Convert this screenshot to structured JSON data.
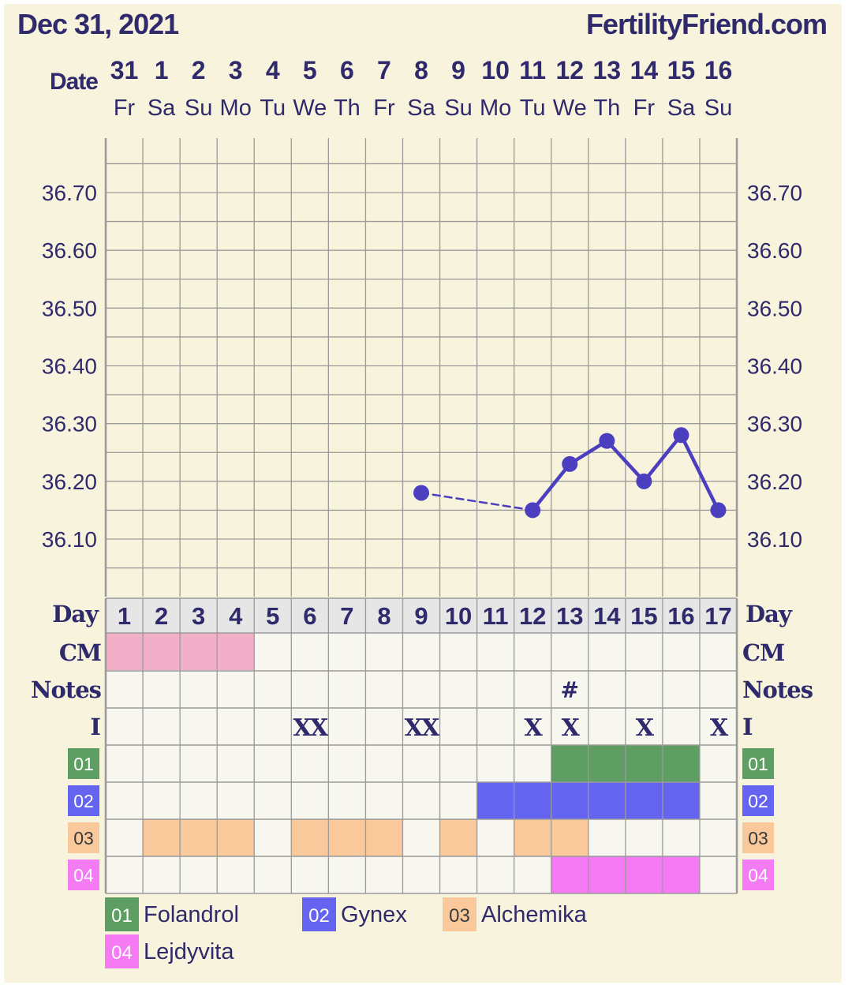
{
  "header": {
    "date": "Dec 31, 2021",
    "site": "FertilityFriend.com"
  },
  "labels": {
    "date": "Date",
    "day": "Day",
    "cm": "CM",
    "notes": "Notes",
    "intercourse": "I"
  },
  "columns": {
    "dates": [
      "31",
      "1",
      "2",
      "3",
      "4",
      "5",
      "6",
      "7",
      "8",
      "9",
      "10",
      "11",
      "12",
      "13",
      "14",
      "15",
      "16"
    ],
    "weekdays": [
      "Fr",
      "Sa",
      "Su",
      "Mo",
      "Tu",
      "We",
      "Th",
      "Fr",
      "Sa",
      "Su",
      "Mo",
      "Tu",
      "We",
      "Th",
      "Fr",
      "Sa",
      "Su"
    ],
    "cycle_days": [
      "1",
      "2",
      "3",
      "4",
      "5",
      "6",
      "7",
      "8",
      "9",
      "10",
      "11",
      "12",
      "13",
      "14",
      "15",
      "16",
      "17"
    ]
  },
  "colors": {
    "background": "#f8f3dc",
    "line": "#4b3fbf",
    "grid": "#9a9a9a",
    "day_row": "#e6e6e6",
    "cm_pink": "#f2b0c8",
    "cell": "#f7f7ef"
  },
  "chart_data": {
    "type": "line",
    "yticks": [
      "36.70",
      "36.60",
      "36.50",
      "36.40",
      "36.30",
      "36.20",
      "36.10"
    ],
    "ylim": [
      36.03,
      36.79
    ],
    "points": [
      {
        "day": 9,
        "temp": 36.18
      },
      {
        "day": 12,
        "temp": 36.15
      },
      {
        "day": 13,
        "temp": 36.23
      },
      {
        "day": 14,
        "temp": 36.27
      },
      {
        "day": 15,
        "temp": 36.2
      },
      {
        "day": 16,
        "temp": 36.28
      },
      {
        "day": 17,
        "temp": 36.15
      }
    ],
    "dashed_segments": [
      [
        9,
        12
      ]
    ]
  },
  "cm": [
    1,
    2,
    3,
    4
  ],
  "notes": [
    {
      "day": 13,
      "text": "#"
    }
  ],
  "intercourse": [
    {
      "day": 6,
      "text": "XX"
    },
    {
      "day": 9,
      "text": "XX"
    },
    {
      "day": 12,
      "text": "X"
    },
    {
      "day": 13,
      "text": "X"
    },
    {
      "day": 15,
      "text": "X"
    },
    {
      "day": 17,
      "text": "X"
    }
  ],
  "meds": [
    {
      "code": "01",
      "name": "Folandrol",
      "color": "#5f9e63",
      "days": [
        13,
        14,
        15,
        16
      ]
    },
    {
      "code": "02",
      "name": "Gynex",
      "color": "#6464f0",
      "days": [
        11,
        12,
        13,
        14,
        15,
        16
      ]
    },
    {
      "code": "03",
      "name": "Alchemika",
      "color": "#f9c99b",
      "days": [
        2,
        3,
        4,
        6,
        7,
        8,
        10,
        12,
        13
      ]
    },
    {
      "code": "04",
      "name": "Lejdyvita",
      "color": "#f47bf4",
      "days": [
        13,
        14,
        15,
        16
      ]
    }
  ]
}
